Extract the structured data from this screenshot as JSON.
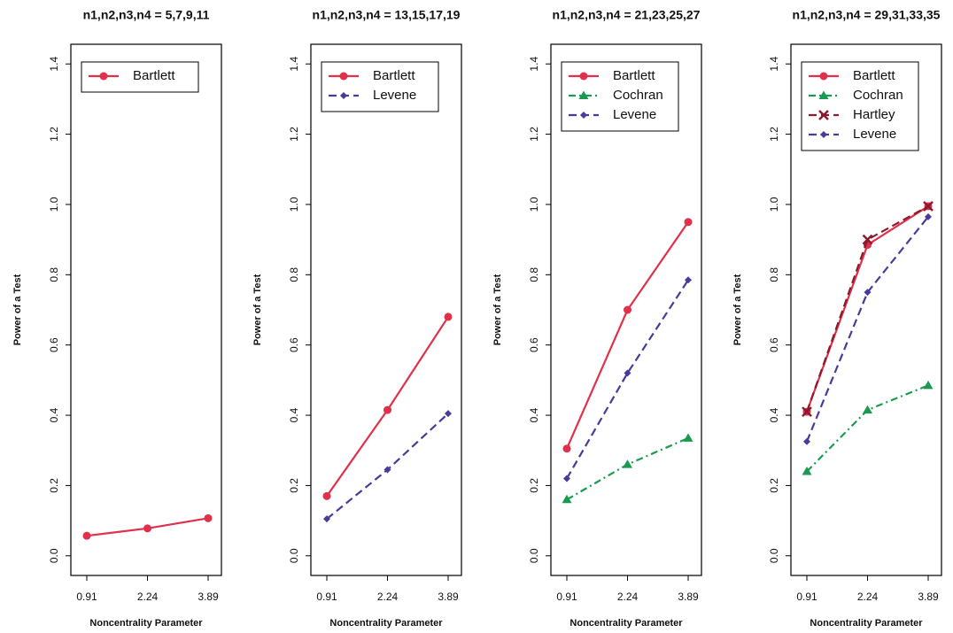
{
  "chart_data": [
    {
      "type": "line",
      "title": "n1,n2,n3,n4 = 5,7,9,11",
      "xlabel": "Noncentrality Parameter",
      "ylabel": "Power of a Test",
      "categories": [
        "0.91",
        "2.24",
        "3.89"
      ],
      "ylim": [
        -0.056,
        1.456
      ],
      "yticks": [
        {
          "value": 0,
          "label": "0.0"
        },
        0.2,
        0.4,
        0.6,
        0.8,
        {
          "value": 1,
          "label": "1.0"
        },
        1.2,
        1.4
      ],
      "legend": "top-left",
      "series": [
        {
          "name": "Bartlett",
          "color": "#e0304a",
          "dash": "solid",
          "marker": "circle",
          "values": [
            0.057,
            0.078,
            0.107
          ]
        }
      ]
    },
    {
      "type": "line",
      "title": "n1,n2,n3,n4 = 13,15,17,19",
      "xlabel": "Noncentrality Parameter",
      "ylabel": "Power of a Test",
      "categories": [
        "0.91",
        "2.24",
        "3.89"
      ],
      "ylim": [
        -0.056,
        1.456
      ],
      "yticks": [
        {
          "value": 0,
          "label": "0.0"
        },
        0.2,
        0.4,
        0.6,
        0.8,
        {
          "value": 1,
          "label": "1.0"
        },
        1.2,
        1.4
      ],
      "legend": "top-left",
      "series": [
        {
          "name": "Bartlett",
          "color": "#e0304a",
          "dash": "solid",
          "marker": "circle",
          "values": [
            0.17,
            0.415,
            0.68
          ]
        },
        {
          "name": "Levene",
          "color": "#4b3a9a",
          "dash": "dashed",
          "marker": "diamond",
          "values": [
            0.105,
            0.245,
            0.405
          ]
        }
      ]
    },
    {
      "type": "line",
      "title": "n1,n2,n3,n4 = 21,23,25,27",
      "xlabel": "Noncentrality Parameter",
      "ylabel": "Power of a Test",
      "categories": [
        "0.91",
        "2.24",
        "3.89"
      ],
      "ylim": [
        -0.056,
        1.456
      ],
      "yticks": [
        {
          "value": 0,
          "label": "0.0"
        },
        0.2,
        0.4,
        0.6,
        0.8,
        {
          "value": 1,
          "label": "1.0"
        },
        1.2,
        1.4
      ],
      "legend": "top-left",
      "series": [
        {
          "name": "Bartlett",
          "color": "#e0304a",
          "dash": "solid",
          "marker": "circle",
          "values": [
            0.305,
            0.7,
            0.95
          ]
        },
        {
          "name": "Cochran",
          "color": "#1a9a50",
          "dash": "dashdot",
          "marker": "triangle",
          "values": [
            0.16,
            0.26,
            0.335
          ]
        },
        {
          "name": "Levene",
          "color": "#4b3a9a",
          "dash": "dashed",
          "marker": "diamond",
          "values": [
            0.22,
            0.52,
            0.785
          ]
        }
      ]
    },
    {
      "type": "line",
      "title": "n1,n2,n3,n4 = 29,31,33,35",
      "xlabel": "Noncentrality Parameter",
      "ylabel": "Power of a Test",
      "categories": [
        "0.91",
        "2.24",
        "3.89"
      ],
      "ylim": [
        -0.056,
        1.456
      ],
      "yticks": [
        {
          "value": 0,
          "label": "0.0"
        },
        0.2,
        0.4,
        0.6,
        0.8,
        {
          "value": 1,
          "label": "1.0"
        },
        1.2,
        1.4
      ],
      "legend": "top-left",
      "series": [
        {
          "name": "Bartlett",
          "color": "#e0304a",
          "dash": "solid",
          "marker": "circle",
          "values": [
            0.41,
            0.885,
            0.995
          ]
        },
        {
          "name": "Cochran",
          "color": "#1a9a50",
          "dash": "dashdot",
          "marker": "triangle",
          "values": [
            0.24,
            0.415,
            0.485
          ]
        },
        {
          "name": "Hartley",
          "color": "#8b1a2e",
          "dash": "dashed",
          "marker": "cross",
          "values": [
            0.41,
            0.9,
            0.995
          ]
        },
        {
          "name": "Levene",
          "color": "#4b3a9a",
          "dash": "dashed",
          "marker": "diamond",
          "values": [
            0.325,
            0.75,
            0.965
          ]
        }
      ]
    }
  ]
}
